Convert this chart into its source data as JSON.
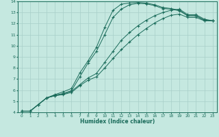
{
  "xlabel": "Humidex (Indice chaleur)",
  "background_color": "#c5e8e0",
  "grid_color": "#a8cfc8",
  "line_color": "#1a6b5a",
  "xlim": [
    -0.5,
    23.5
  ],
  "ylim": [
    4,
    14
  ],
  "xticks": [
    0,
    1,
    2,
    3,
    4,
    5,
    6,
    7,
    8,
    9,
    10,
    11,
    12,
    13,
    14,
    15,
    16,
    17,
    18,
    19,
    20,
    21,
    22,
    23
  ],
  "yticks": [
    4,
    5,
    6,
    7,
    8,
    9,
    10,
    11,
    12,
    13,
    14
  ],
  "series": [
    {
      "x": [
        0,
        1,
        2,
        3,
        4,
        5,
        6,
        7,
        8,
        9,
        10,
        11,
        12,
        13,
        14,
        15,
        16,
        17,
        18,
        19,
        20,
        21,
        22,
        23
      ],
      "y": [
        4.1,
        4.1,
        4.7,
        5.3,
        5.6,
        5.85,
        6.15,
        7.55,
        8.65,
        9.85,
        11.65,
        13.2,
        13.75,
        13.85,
        13.9,
        13.85,
        13.7,
        13.45,
        13.35,
        13.2,
        12.7,
        12.7,
        12.3,
        12.25
      ]
    },
    {
      "x": [
        0,
        1,
        2,
        3,
        4,
        5,
        6,
        7,
        8,
        9,
        10,
        11,
        12,
        13,
        14,
        15,
        16,
        17,
        18,
        19,
        20,
        21,
        22,
        23
      ],
      "y": [
        4.1,
        4.1,
        4.7,
        5.3,
        5.55,
        5.7,
        5.95,
        7.2,
        8.45,
        9.5,
        11.0,
        12.55,
        13.3,
        13.7,
        13.82,
        13.78,
        13.62,
        13.35,
        13.3,
        13.15,
        12.7,
        12.7,
        12.3,
        12.25
      ]
    },
    {
      "x": [
        0,
        1,
        2,
        3,
        4,
        5,
        6,
        7,
        8,
        9,
        10,
        11,
        12,
        13,
        14,
        15,
        16,
        17,
        18,
        19,
        20,
        21,
        22,
        23
      ],
      "y": [
        4.1,
        4.1,
        4.7,
        5.3,
        5.5,
        5.65,
        5.9,
        6.5,
        7.1,
        7.5,
        8.5,
        9.5,
        10.5,
        11.2,
        11.8,
        12.3,
        12.7,
        13.0,
        13.2,
        13.3,
        12.8,
        12.8,
        12.4,
        12.25
      ]
    },
    {
      "x": [
        0,
        1,
        2,
        3,
        4,
        5,
        6,
        7,
        8,
        9,
        10,
        11,
        12,
        13,
        14,
        15,
        16,
        17,
        18,
        19,
        20,
        21,
        22,
        23
      ],
      "y": [
        4.1,
        4.1,
        4.7,
        5.3,
        5.5,
        5.6,
        5.8,
        6.4,
        6.9,
        7.2,
        8.0,
        8.85,
        9.65,
        10.35,
        11.0,
        11.55,
        12.05,
        12.45,
        12.75,
        12.85,
        12.55,
        12.55,
        12.25,
        12.25
      ]
    }
  ]
}
